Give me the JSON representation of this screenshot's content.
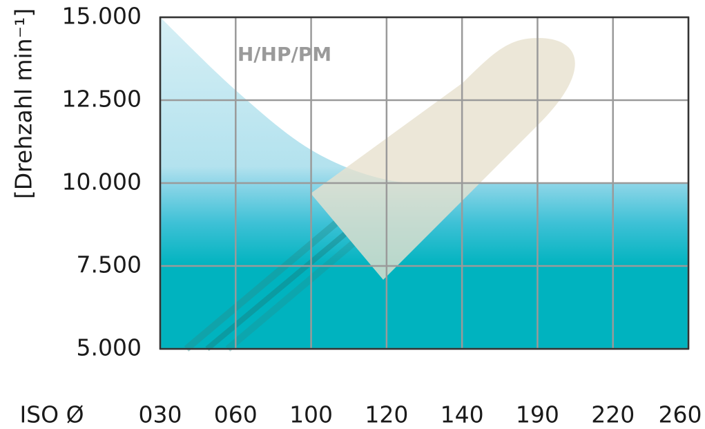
{
  "chart_data": {
    "type": "area",
    "y_label": "[Drehzahl min⁻¹]",
    "x_label": "ISO Ø",
    "annotation": "H/HP/PM",
    "categories": [
      "030",
      "060",
      "100",
      "120",
      "140",
      "190",
      "220",
      "260"
    ],
    "values": [
      15000,
      12800,
      11000,
      10100,
      10000,
      10000,
      10000,
      10000
    ],
    "ylim": [
      5000,
      15000
    ],
    "yticks": [
      {
        "value": 5000,
        "label": "5.000"
      },
      {
        "value": 7500,
        "label": "7.500"
      },
      {
        "value": 10000,
        "label": "10.000"
      },
      {
        "value": 12500,
        "label": "12.500"
      },
      {
        "value": 15000,
        "label": "15.000"
      }
    ],
    "grid": true,
    "color": "#00b3bf"
  }
}
